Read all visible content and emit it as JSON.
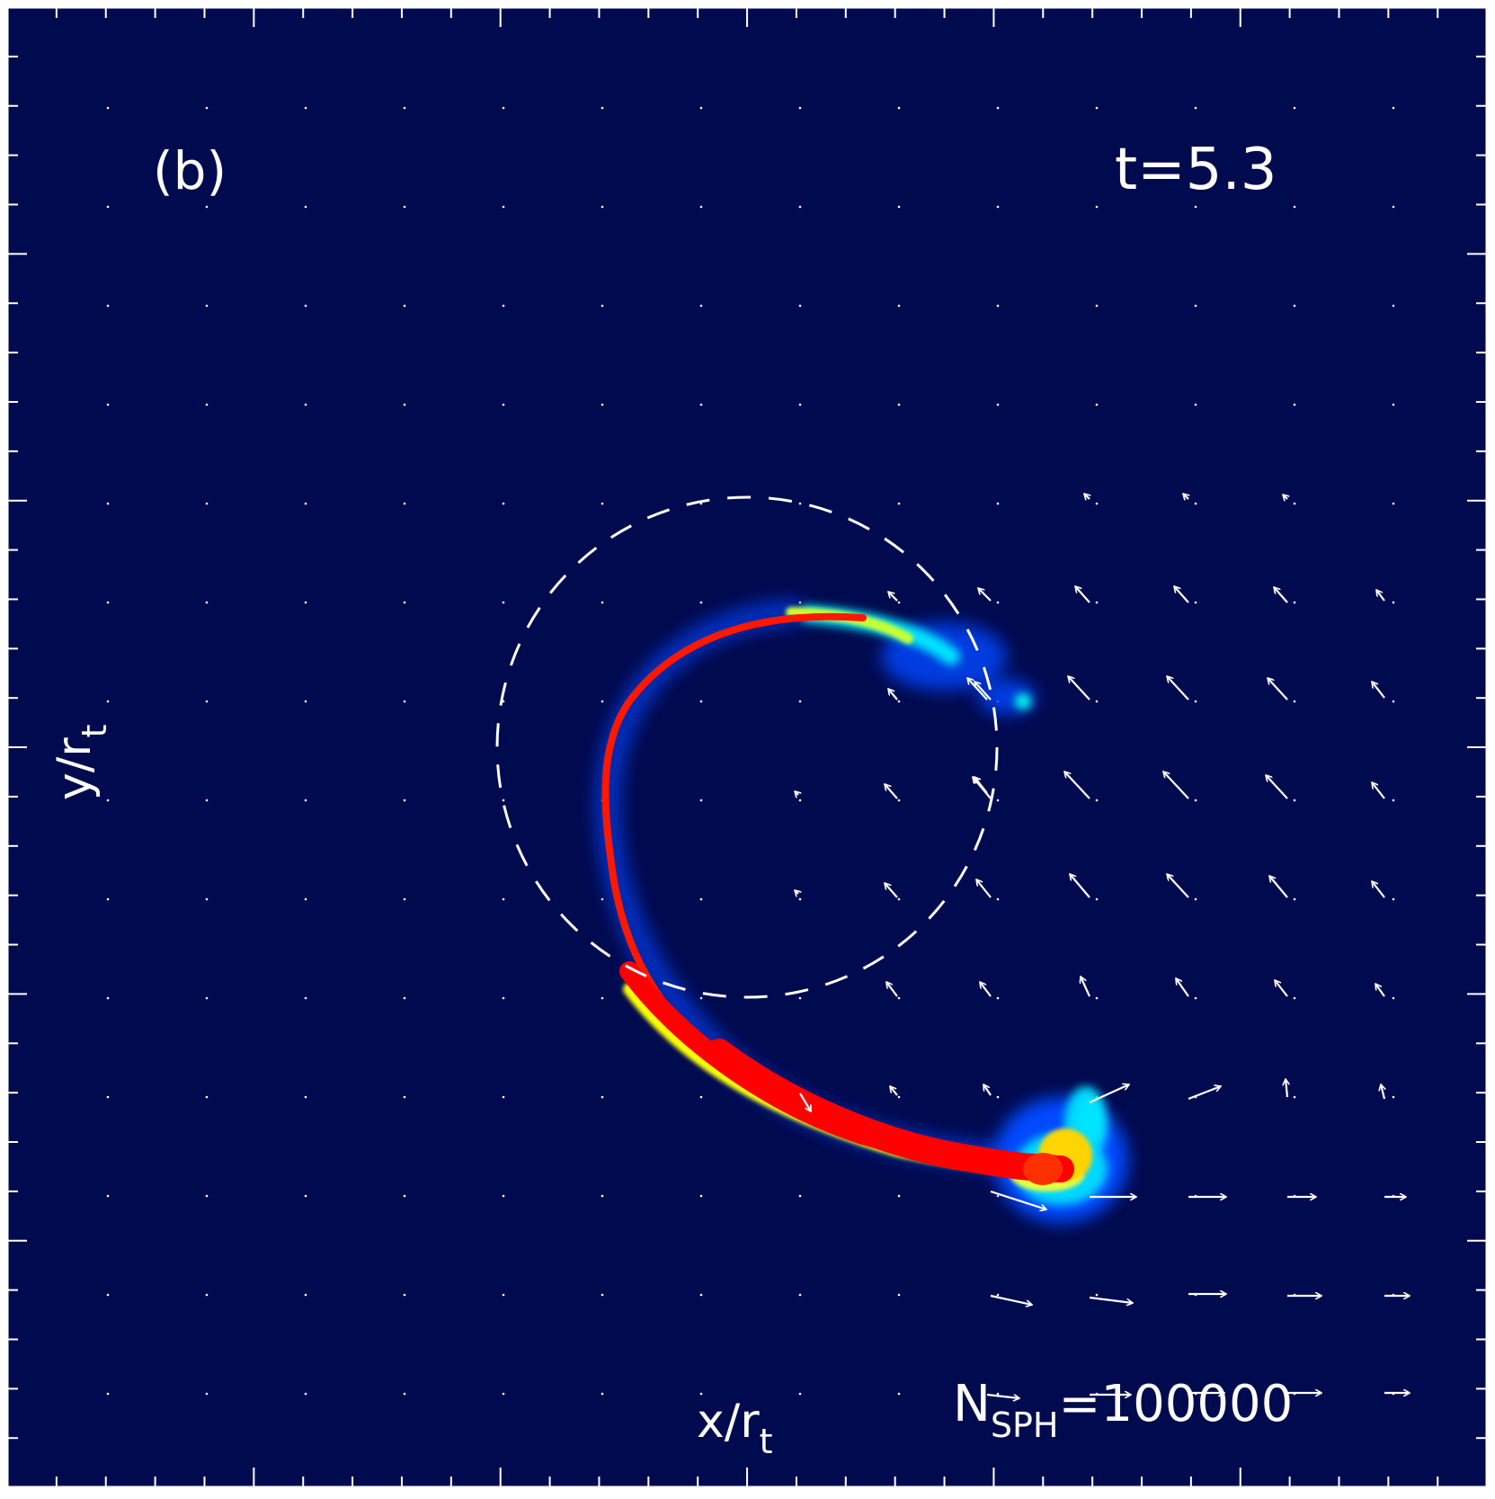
{
  "panel": {
    "panel_label": "(b)",
    "time_label": "t=5.3",
    "particle_count": {
      "prefix": "N",
      "subscript": "SPH",
      "value": "=100000"
    },
    "axes": {
      "x_label": "x/r",
      "x_label_subscript": "t",
      "y_label": "y/r",
      "y_label_subscript": "t"
    },
    "colors": {
      "background": "#000a4f",
      "frame": "#ffffff",
      "stream_core": "#ff0000",
      "stream_edge_yellow": "#ffff00",
      "stream_edge_cyan": "#00e5ff",
      "stream_halo_blue": "#0048ff",
      "annotation": "#ffffff"
    }
  }
}
